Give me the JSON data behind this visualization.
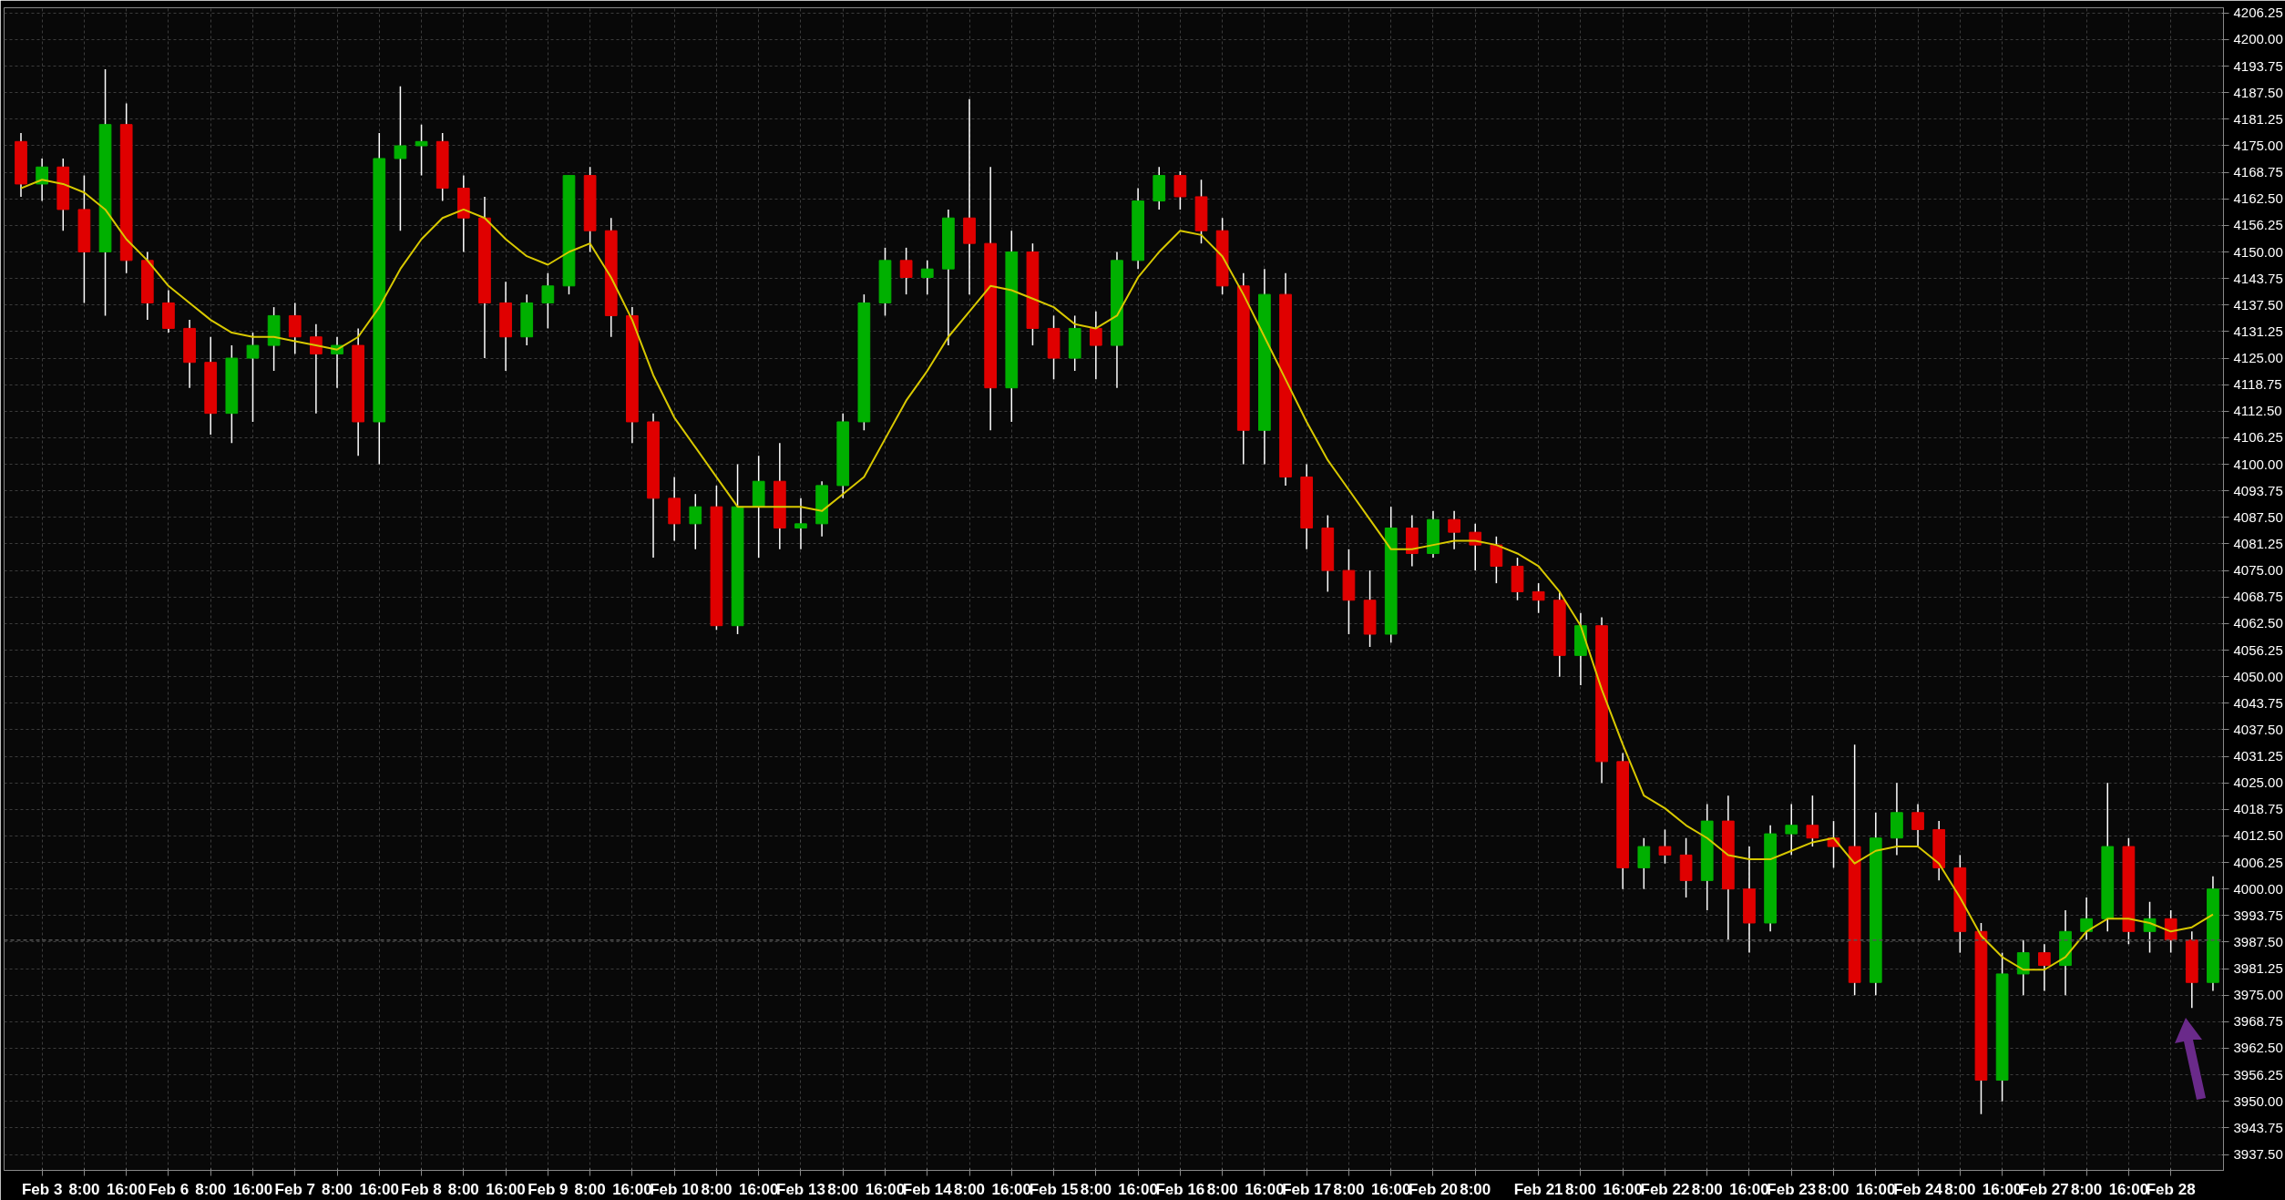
{
  "chart_data": {
    "type": "candlestick",
    "categories": [
      null,
      "Feb 3",
      null,
      "8:00",
      null,
      "16:00",
      null,
      "Feb 6",
      null,
      "8:00",
      null,
      "16:00",
      null,
      "Feb 7",
      null,
      "8:00",
      null,
      "16:00",
      null,
      "Feb 8",
      null,
      "8:00",
      null,
      "16:00",
      null,
      "Feb 9",
      null,
      "8:00",
      null,
      "16:00",
      null,
      "Feb 10",
      null,
      "8:00",
      null,
      "16:00",
      null,
      "Feb 13",
      null,
      "8:00",
      null,
      "16:00",
      null,
      "Feb 14",
      null,
      "8:00",
      null,
      "16:00",
      null,
      "Feb 15",
      null,
      "8:00",
      null,
      "16:00",
      null,
      "Feb 16",
      null,
      "8:00",
      null,
      "16:00",
      null,
      "Feb 17",
      null,
      "8:00",
      null,
      "16:00",
      null,
      "Feb 20",
      null,
      "8:00",
      null,
      null,
      "Feb 21",
      null,
      "8:00",
      null,
      "16:00",
      null,
      "Feb 22",
      null,
      "8:00",
      null,
      "16:00",
      null,
      "Feb 23",
      null,
      "8:00",
      null,
      "16:00",
      null,
      "Feb 24",
      null,
      "8:00",
      null,
      "16:00",
      null,
      "Feb 27",
      null,
      "8:00",
      null,
      "16:00",
      null,
      "Feb 28",
      null,
      null
    ],
    "ohlc": [
      [
        4176,
        4178,
        4163,
        4166
      ],
      [
        4166,
        4172,
        4162,
        4170
      ],
      [
        4170,
        4172,
        4155,
        4160
      ],
      [
        4160,
        4168,
        4138,
        4150
      ],
      [
        4150,
        4193,
        4135,
        4180
      ],
      [
        4180,
        4185,
        4145,
        4148
      ],
      [
        4148,
        4150,
        4134,
        4138
      ],
      [
        4138,
        4141,
        4131,
        4132
      ],
      [
        4132,
        4134,
        4118,
        4124
      ],
      [
        4124,
        4130,
        4107,
        4112
      ],
      [
        4112,
        4128,
        4105,
        4125
      ],
      [
        4125,
        4131,
        4110,
        4128
      ],
      [
        4128,
        4137,
        4122,
        4135
      ],
      [
        4135,
        4138,
        4126,
        4130
      ],
      [
        4130,
        4133,
        4112,
        4126
      ],
      [
        4126,
        4130,
        4118,
        4128
      ],
      [
        4128,
        4132,
        4102,
        4110
      ],
      [
        4110,
        4178,
        4100,
        4172
      ],
      [
        4172,
        4189,
        4155,
        4175
      ],
      [
        4175,
        4180,
        4168,
        4176
      ],
      [
        4176,
        4178,
        4162,
        4165
      ],
      [
        4165,
        4168,
        4150,
        4158
      ],
      [
        4158,
        4163,
        4125,
        4138
      ],
      [
        4138,
        4143,
        4122,
        4130
      ],
      [
        4130,
        4140,
        4128,
        4138
      ],
      [
        4138,
        4145,
        4132,
        4142
      ],
      [
        4142,
        4168,
        4140,
        4168
      ],
      [
        4168,
        4170,
        4150,
        4155
      ],
      [
        4155,
        4158,
        4130,
        4135
      ],
      [
        4135,
        4137,
        4105,
        4110
      ],
      [
        4110,
        4112,
        4078,
        4092
      ],
      [
        4092,
        4097,
        4082,
        4086
      ],
      [
        4086,
        4093,
        4080,
        4090
      ],
      [
        4090,
        4095,
        4061,
        4062
      ],
      [
        4062,
        4100,
        4060,
        4090
      ],
      [
        4090,
        4102,
        4078,
        4096
      ],
      [
        4096,
        4105,
        4080,
        4085
      ],
      [
        4085,
        4092,
        4080,
        4086
      ],
      [
        4086,
        4096,
        4083,
        4095
      ],
      [
        4095,
        4112,
        4092,
        4110
      ],
      [
        4110,
        4140,
        4108,
        4138
      ],
      [
        4138,
        4151,
        4135,
        4148
      ],
      [
        4148,
        4151,
        4140,
        4144
      ],
      [
        4144,
        4148,
        4140,
        4146
      ],
      [
        4146,
        4160,
        4128,
        4158
      ],
      [
        4158,
        4186,
        4140,
        4152
      ],
      [
        4152,
        4170,
        4108,
        4118
      ],
      [
        4118,
        4155,
        4110,
        4150
      ],
      [
        4150,
        4152,
        4128,
        4132
      ],
      [
        4132,
        4135,
        4120,
        4125
      ],
      [
        4125,
        4135,
        4122,
        4132
      ],
      [
        4132,
        4136,
        4120,
        4128
      ],
      [
        4128,
        4150,
        4118,
        4148
      ],
      [
        4148,
        4165,
        4146,
        4162
      ],
      [
        4162,
        4170,
        4160,
        4168
      ],
      [
        4168,
        4169,
        4160,
        4163
      ],
      [
        4163,
        4167,
        4152,
        4155
      ],
      [
        4155,
        4158,
        4140,
        4142
      ],
      [
        4142,
        4145,
        4100,
        4108
      ],
      [
        4108,
        4146,
        4100,
        4140
      ],
      [
        4140,
        4145,
        4095,
        4097
      ],
      [
        4097,
        4100,
        4080,
        4085
      ],
      [
        4085,
        4088,
        4070,
        4075
      ],
      [
        4075,
        4080,
        4060,
        4068
      ],
      [
        4068,
        4075,
        4057,
        4060
      ],
      [
        4060,
        4090,
        4058,
        4085
      ],
      [
        4085,
        4088,
        4076,
        4079
      ],
      [
        4079,
        4089,
        4078,
        4087
      ],
      [
        4087,
        4089,
        4080,
        4084
      ],
      [
        4084,
        4086,
        4075,
        4081
      ],
      [
        4081,
        4083,
        4072,
        4076
      ],
      [
        4076,
        4078,
        4068,
        4070
      ],
      [
        4070,
        4072,
        4065,
        4068
      ],
      [
        4068,
        4070,
        4050,
        4055
      ],
      [
        4055,
        4065,
        4048,
        4062
      ],
      [
        4062,
        4064,
        4025,
        4030
      ],
      [
        4030,
        4032,
        4000,
        4005
      ],
      [
        4005,
        4012,
        4000,
        4010
      ],
      [
        4010,
        4014,
        4006,
        4008
      ],
      [
        4008,
        4012,
        3998,
        4002
      ],
      [
        4002,
        4020,
        3995,
        4016
      ],
      [
        4016,
        4022,
        3988,
        4000
      ],
      [
        4000,
        4010,
        3985,
        3992
      ],
      [
        3992,
        4015,
        3990,
        4013
      ],
      [
        4013,
        4020,
        4008,
        4015
      ],
      [
        4015,
        4022,
        4010,
        4012
      ],
      [
        4012,
        4016,
        4005,
        4010
      ],
      [
        4010,
        4034,
        3975,
        3978
      ],
      [
        3978,
        4018,
        3975,
        4012
      ],
      [
        4012,
        4025,
        4008,
        4018
      ],
      [
        4018,
        4020,
        4010,
        4014
      ],
      [
        4014,
        4016,
        4002,
        4005
      ],
      [
        4005,
        4008,
        3985,
        3990
      ],
      [
        3990,
        3992,
        3947,
        3955
      ],
      [
        3955,
        3985,
        3950,
        3980
      ],
      [
        3980,
        3988,
        3975,
        3985
      ],
      [
        3985,
        3987,
        3976,
        3982
      ],
      [
        3982,
        3995,
        3975,
        3990
      ],
      [
        3990,
        3998,
        3988,
        3993
      ],
      [
        3993,
        4025,
        3990,
        4010
      ],
      [
        4010,
        4012,
        3987,
        3990
      ],
      [
        3990,
        3997,
        3985,
        3993
      ],
      [
        3993,
        3995,
        3985,
        3988
      ],
      [
        3988,
        3990,
        3972,
        3978
      ],
      [
        3978,
        4003,
        3976,
        4000
      ]
    ],
    "colors": [
      "#e00000",
      "#00b000",
      "#e00000",
      "#e00000",
      "#00b000",
      "#e00000",
      "#e00000",
      "#e00000",
      "#e00000",
      "#e00000",
      "#00b000",
      "#00b000",
      "#00b000",
      "#e00000",
      "#e00000",
      "#00b000",
      "#e00000",
      "#00b000",
      "#00b000",
      "#00b000",
      "#e00000",
      "#e00000",
      "#e00000",
      "#e00000",
      "#00b000",
      "#00b000",
      "#00b000",
      "#e00000",
      "#e00000",
      "#e00000",
      "#e00000",
      "#e00000",
      "#00b000",
      "#e00000",
      "#00b000",
      "#00b000",
      "#e00000",
      "#00b000",
      "#00b000",
      "#00b000",
      "#00b000",
      "#00b000",
      "#e00000",
      "#00b000",
      "#00b000",
      "#e00000",
      "#e00000",
      "#00b000",
      "#e00000",
      "#e00000",
      "#00b000",
      "#e00000",
      "#00b000",
      "#00b000",
      "#00b000",
      "#e00000",
      "#e00000",
      "#e00000",
      "#e00000",
      "#00b000",
      "#e00000",
      "#e00000",
      "#e00000",
      "#e00000",
      "#e00000",
      "#00b000",
      "#e00000",
      "#00b000",
      "#e00000",
      "#e00000",
      "#e00000",
      "#e00000",
      "#e00000",
      "#e00000",
      "#00b000",
      "#e00000",
      "#e00000",
      "#00b000",
      "#e00000",
      "#e00000",
      "#00b000",
      "#e00000",
      "#e00000",
      "#00b000",
      "#00b000",
      "#e00000",
      "#e00000",
      "#e00000",
      "#00b000",
      "#00b000",
      "#e00000",
      "#e00000",
      "#e00000",
      "#e00000",
      "#00b000",
      "#00b000",
      "#e00000",
      "#00b000",
      "#00b000",
      "#00b000",
      "#e00000",
      "#00b000",
      "#e00000",
      "#e00000",
      "#00b000"
    ],
    "series": [
      {
        "type": "line",
        "color": "#d8c800",
        "values": [
          4165,
          4167,
          4166,
          4164,
          4160,
          4153,
          4148,
          4142,
          4138,
          4134,
          4131,
          4130,
          4130,
          4129,
          4128,
          4127,
          4130,
          4137,
          4146,
          4153,
          4158,
          4160,
          4158,
          4153,
          4149,
          4147,
          4150,
          4152,
          4144,
          4134,
          4121,
          4111,
          4104,
          4097,
          4090,
          4090,
          4090,
          4090,
          4089,
          4093,
          4097,
          4106,
          4115,
          4122,
          4130,
          4136,
          4142,
          4141,
          4139,
          4137,
          4133,
          4132,
          4135,
          4144,
          4150,
          4155,
          4154,
          4149,
          4140,
          4130,
          4120,
          4110,
          4101,
          4094,
          4087,
          4080,
          4080,
          4081,
          4082,
          4082,
          4081,
          4079,
          4076,
          4070,
          4062,
          4047,
          4034,
          4022,
          4019,
          4015,
          4012,
          4008,
          4007,
          4007,
          4009,
          4011,
          4012,
          4006,
          4009,
          4010,
          4010,
          4006,
          3998,
          3989,
          3984,
          3981,
          3981,
          3984,
          3990,
          3993,
          3993,
          3992,
          3990,
          3991,
          3994
        ]
      }
    ],
    "ylim": [
      3933.75,
      4207.5
    ],
    "yticks": [
      {
        "value": 3937.5,
        "label": "3937.50"
      },
      {
        "value": 3943.75,
        "label": "3943.75"
      },
      {
        "value": 3950,
        "label": "3950.00"
      },
      {
        "value": 3956.25,
        "label": "3956.25"
      },
      {
        "value": 3962.5,
        "label": "3962.50"
      },
      {
        "value": 3968.75,
        "label": "3968.75"
      },
      {
        "value": 3975,
        "label": "3975.00"
      },
      {
        "value": 3981.25,
        "label": "3981.25"
      },
      {
        "value": 3987.5,
        "label": "3987.50"
      },
      {
        "value": 3993.75,
        "label": "3993.75"
      },
      {
        "value": 4000,
        "label": "4000.00"
      },
      {
        "value": 4006.25,
        "label": "4006.25"
      },
      {
        "value": 4012.5,
        "label": "4012.50"
      },
      {
        "value": 4018.75,
        "label": "4018.75"
      },
      {
        "value": 4025,
        "label": "4025.00"
      },
      {
        "value": 4031.25,
        "label": "4031.25"
      },
      {
        "value": 4037.5,
        "label": "4037.50"
      },
      {
        "value": 4043.75,
        "label": "4043.75"
      },
      {
        "value": 4050,
        "label": "4050.00"
      },
      {
        "value": 4056.25,
        "label": "4056.25"
      },
      {
        "value": 4062.5,
        "label": "4062.50"
      },
      {
        "value": 4068.75,
        "label": "4068.75"
      },
      {
        "value": 4075,
        "label": "4075.00"
      },
      {
        "value": 4081.25,
        "label": "4081.25"
      },
      {
        "value": 4087.5,
        "label": "4087.50"
      },
      {
        "value": 4093.75,
        "label": "4093.75"
      },
      {
        "value": 4100,
        "label": "4100.00"
      },
      {
        "value": 4106.25,
        "label": "4106.25"
      },
      {
        "value": 4112.5,
        "label": "4112.50"
      },
      {
        "value": 4118.75,
        "label": "4118.75"
      },
      {
        "value": 4125,
        "label": "4125.00"
      },
      {
        "value": 4131.25,
        "label": "4131.25"
      },
      {
        "value": 4137.5,
        "label": "4137.50"
      },
      {
        "value": 4143.75,
        "label": "4143.75"
      },
      {
        "value": 4150,
        "label": "4150.00"
      },
      {
        "value": 4156.25,
        "label": "4156.25"
      },
      {
        "value": 4162.5,
        "label": "4162.50"
      },
      {
        "value": 4168.75,
        "label": "4168.75"
      },
      {
        "value": 4175,
        "label": "4175.00"
      },
      {
        "value": 4181.25,
        "label": "4181.25"
      },
      {
        "value": 4187.5,
        "label": "4187.50"
      },
      {
        "value": 4193.75,
        "label": "4193.75"
      },
      {
        "value": 4200,
        "label": "4200.00"
      },
      {
        "value": 4206.25,
        "label": "4206.25"
      }
    ],
    "grid": true,
    "ref_lines": [
      {
        "axis": "y",
        "value": 3988,
        "color": "#555555",
        "line_style": "dashed"
      }
    ]
  }
}
